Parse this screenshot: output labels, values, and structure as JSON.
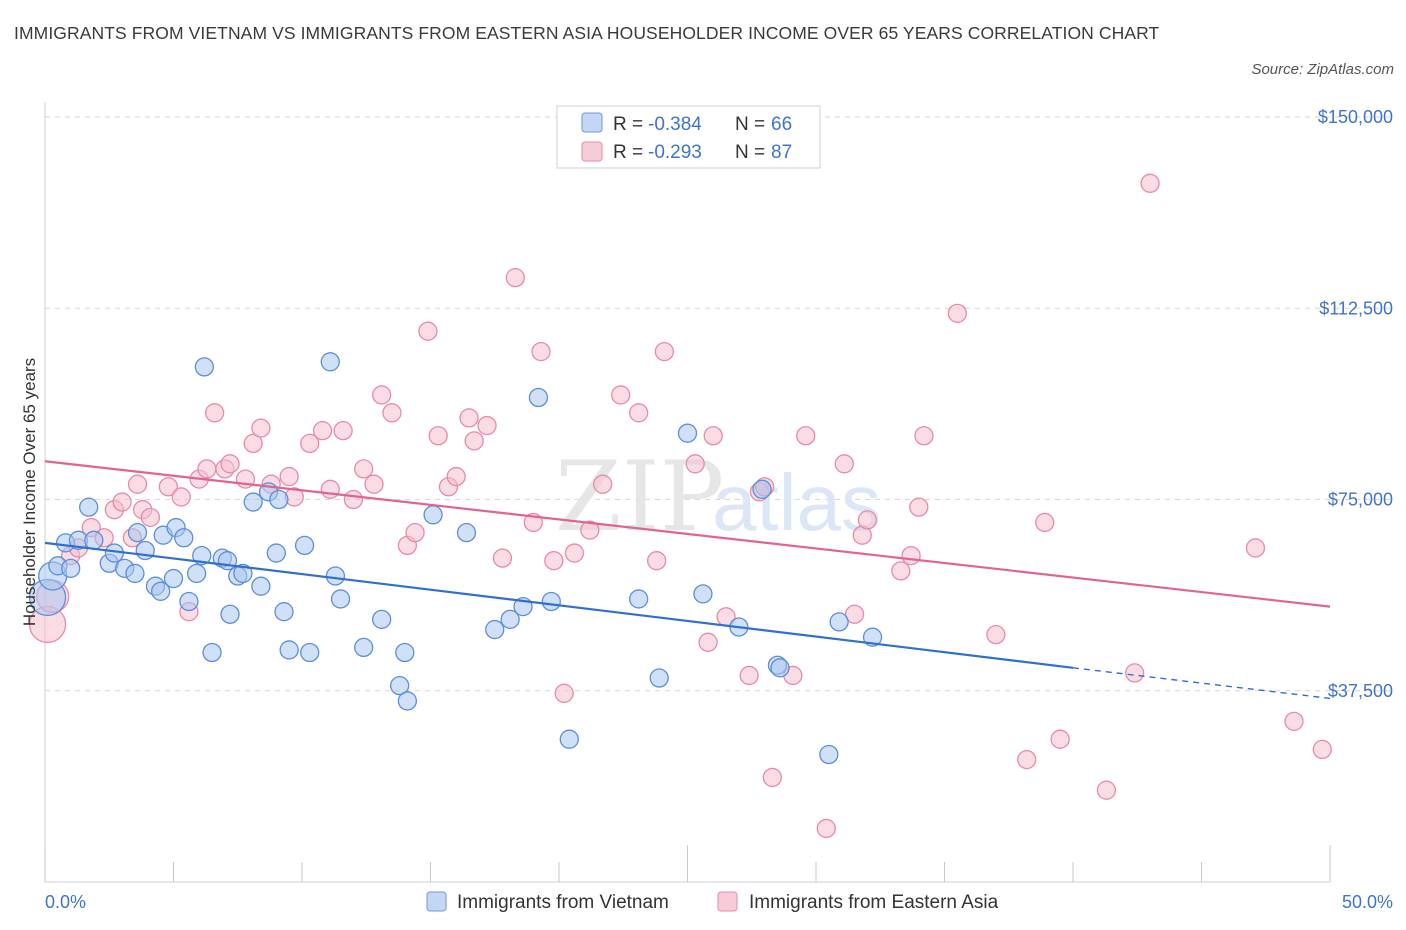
{
  "title": "IMMIGRANTS FROM VIETNAM VS IMMIGRANTS FROM EASTERN ASIA HOUSEHOLDER INCOME OVER 65 YEARS CORRELATION CHART",
  "source": "Source: ZipAtlas.com",
  "colors": {
    "blue_fill": "#a9c6f0",
    "blue_stroke": "#5b8fd9",
    "blue_line": "#2f6fd0",
    "pink_fill": "#f6c0d0",
    "pink_stroke": "#e88aa8",
    "pink_line": "#e0648f",
    "grid": "#d6d6d6",
    "tick_text": "#3f74c9"
  },
  "legend": {
    "series1": {
      "r_label": "R =",
      "r_value": "-0.384",
      "n_label": "N =",
      "n_value": "66"
    },
    "series2": {
      "r_label": "R =",
      "r_value": "-0.293",
      "n_label": "N =",
      "n_value": "87"
    }
  },
  "chart_data": {
    "type": "scatter",
    "title": "IMMIGRANTS FROM VIETNAM VS IMMIGRANTS FROM EASTERN ASIA HOUSEHOLDER INCOME OVER 65 YEARS CORRELATION CHART",
    "xlabel": "",
    "ylabel": "Householder Income Over 65 years",
    "xlim": [
      0,
      50
    ],
    "ylim": [
      0,
      150000
    ],
    "x_tick_labels": [
      "0.0%",
      "50.0%"
    ],
    "y_ticks": [
      37500,
      75000,
      112500,
      150000
    ],
    "y_tick_labels": [
      "$37,500",
      "$75,000",
      "$112,500",
      "$150,000"
    ],
    "watermark": "ZIPatlas",
    "series": [
      {
        "name": "Immigrants from Vietnam",
        "color": "#a9c6f0",
        "trend": {
          "x_start": 0,
          "y_start": 66500,
          "x_solid_end": 40,
          "y_solid_end": 42000,
          "x_end": 50,
          "y_end": 36000
        },
        "points": [
          [
            0.1,
            55800
          ],
          [
            0.3,
            60000
          ],
          [
            0.5,
            62000
          ],
          [
            0.8,
            66500
          ],
          [
            1.0,
            61500
          ],
          [
            1.3,
            67000
          ],
          [
            1.7,
            73500
          ],
          [
            1.9,
            67000
          ],
          [
            2.5,
            62500
          ],
          [
            2.7,
            64500
          ],
          [
            3.1,
            61500
          ],
          [
            3.5,
            60500
          ],
          [
            3.6,
            68500
          ],
          [
            3.9,
            65000
          ],
          [
            4.3,
            58000
          ],
          [
            4.5,
            57000
          ],
          [
            4.6,
            68000
          ],
          [
            5.0,
            59500
          ],
          [
            5.1,
            69500
          ],
          [
            5.4,
            67500
          ],
          [
            5.6,
            55000
          ],
          [
            5.9,
            60500
          ],
          [
            6.1,
            64000
          ],
          [
            6.2,
            101000
          ],
          [
            6.5,
            45000
          ],
          [
            6.9,
            63500
          ],
          [
            7.1,
            63000
          ],
          [
            7.2,
            52500
          ],
          [
            7.5,
            60000
          ],
          [
            7.7,
            60500
          ],
          [
            8.1,
            74500
          ],
          [
            8.4,
            58000
          ],
          [
            8.7,
            76500
          ],
          [
            9.0,
            64500
          ],
          [
            9.1,
            75000
          ],
          [
            9.3,
            53000
          ],
          [
            9.5,
            45500
          ],
          [
            10.1,
            66000
          ],
          [
            10.3,
            45000
          ],
          [
            11.1,
            102000
          ],
          [
            11.3,
            60000
          ],
          [
            11.5,
            55500
          ],
          [
            12.4,
            46000
          ],
          [
            13.1,
            51500
          ],
          [
            13.8,
            38500
          ],
          [
            14.0,
            45000
          ],
          [
            14.1,
            35500
          ],
          [
            15.1,
            72000
          ],
          [
            16.4,
            68500
          ],
          [
            17.5,
            49500
          ],
          [
            18.1,
            51500
          ],
          [
            18.6,
            54000
          ],
          [
            19.2,
            95000
          ],
          [
            19.7,
            55000
          ],
          [
            20.4,
            28000
          ],
          [
            23.1,
            55500
          ],
          [
            23.9,
            40000
          ],
          [
            25.0,
            88000
          ],
          [
            25.6,
            56500
          ],
          [
            27.0,
            50000
          ],
          [
            28.5,
            42500
          ],
          [
            28.6,
            42000
          ],
          [
            30.5,
            25000
          ],
          [
            30.9,
            51000
          ],
          [
            32.2,
            48000
          ],
          [
            27.9,
            77000
          ]
        ]
      },
      {
        "name": "Immigrants from Eastern Asia",
        "color": "#f6c0d0",
        "trend": {
          "x_start": 0,
          "y_start": 82500,
          "x_end": 50,
          "y_end": 54000
        },
        "points": [
          [
            0.1,
            50500
          ],
          [
            0.3,
            56000
          ],
          [
            1.0,
            64000
          ],
          [
            1.3,
            65500
          ],
          [
            1.8,
            69500
          ],
          [
            2.3,
            67500
          ],
          [
            2.7,
            73000
          ],
          [
            3.0,
            74500
          ],
          [
            3.4,
            67500
          ],
          [
            3.6,
            78000
          ],
          [
            3.8,
            73000
          ],
          [
            4.1,
            71500
          ],
          [
            4.8,
            77500
          ],
          [
            5.3,
            75500
          ],
          [
            5.6,
            53000
          ],
          [
            6.0,
            79000
          ],
          [
            6.3,
            81000
          ],
          [
            6.6,
            92000
          ],
          [
            7.0,
            81000
          ],
          [
            7.2,
            82000
          ],
          [
            7.8,
            79000
          ],
          [
            8.1,
            86000
          ],
          [
            8.4,
            89000
          ],
          [
            8.8,
            78000
          ],
          [
            9.5,
            79500
          ],
          [
            9.7,
            75500
          ],
          [
            10.3,
            86000
          ],
          [
            10.8,
            88500
          ],
          [
            11.1,
            77000
          ],
          [
            11.6,
            88500
          ],
          [
            12.0,
            75000
          ],
          [
            12.4,
            81000
          ],
          [
            12.8,
            78000
          ],
          [
            13.1,
            95500
          ],
          [
            13.5,
            92000
          ],
          [
            14.1,
            66000
          ],
          [
            14.4,
            68500
          ],
          [
            14.9,
            108000
          ],
          [
            15.3,
            87500
          ],
          [
            15.7,
            77500
          ],
          [
            16.0,
            79500
          ],
          [
            16.5,
            91000
          ],
          [
            16.7,
            86500
          ],
          [
            17.2,
            89500
          ],
          [
            17.8,
            63500
          ],
          [
            18.3,
            118500
          ],
          [
            19.3,
            104000
          ],
          [
            19.0,
            70500
          ],
          [
            19.8,
            63000
          ],
          [
            20.2,
            37000
          ],
          [
            20.6,
            64500
          ],
          [
            21.2,
            69000
          ],
          [
            21.7,
            78000
          ],
          [
            22.4,
            95500
          ],
          [
            23.1,
            92000
          ],
          [
            23.8,
            63000
          ],
          [
            24.1,
            104000
          ],
          [
            25.3,
            82000
          ],
          [
            25.8,
            47000
          ],
          [
            26.0,
            87500
          ],
          [
            26.5,
            52000
          ],
          [
            27.8,
            76500
          ],
          [
            28.0,
            77500
          ],
          [
            28.3,
            20500
          ],
          [
            29.1,
            40500
          ],
          [
            29.6,
            87500
          ],
          [
            30.4,
            10500
          ],
          [
            31.1,
            82000
          ],
          [
            31.5,
            52500
          ],
          [
            31.8,
            68000
          ],
          [
            32.0,
            71000
          ],
          [
            33.3,
            61000
          ],
          [
            33.7,
            64000
          ],
          [
            34.0,
            73500
          ],
          [
            34.2,
            87500
          ],
          [
            35.5,
            111500
          ],
          [
            37.0,
            48500
          ],
          [
            38.2,
            24000
          ],
          [
            38.9,
            70500
          ],
          [
            39.5,
            28000
          ],
          [
            41.3,
            18000
          ],
          [
            42.4,
            41000
          ],
          [
            43.0,
            137000
          ],
          [
            47.1,
            65500
          ],
          [
            48.6,
            31500
          ],
          [
            49.7,
            26000
          ],
          [
            27.4,
            40500
          ]
        ]
      }
    ]
  }
}
